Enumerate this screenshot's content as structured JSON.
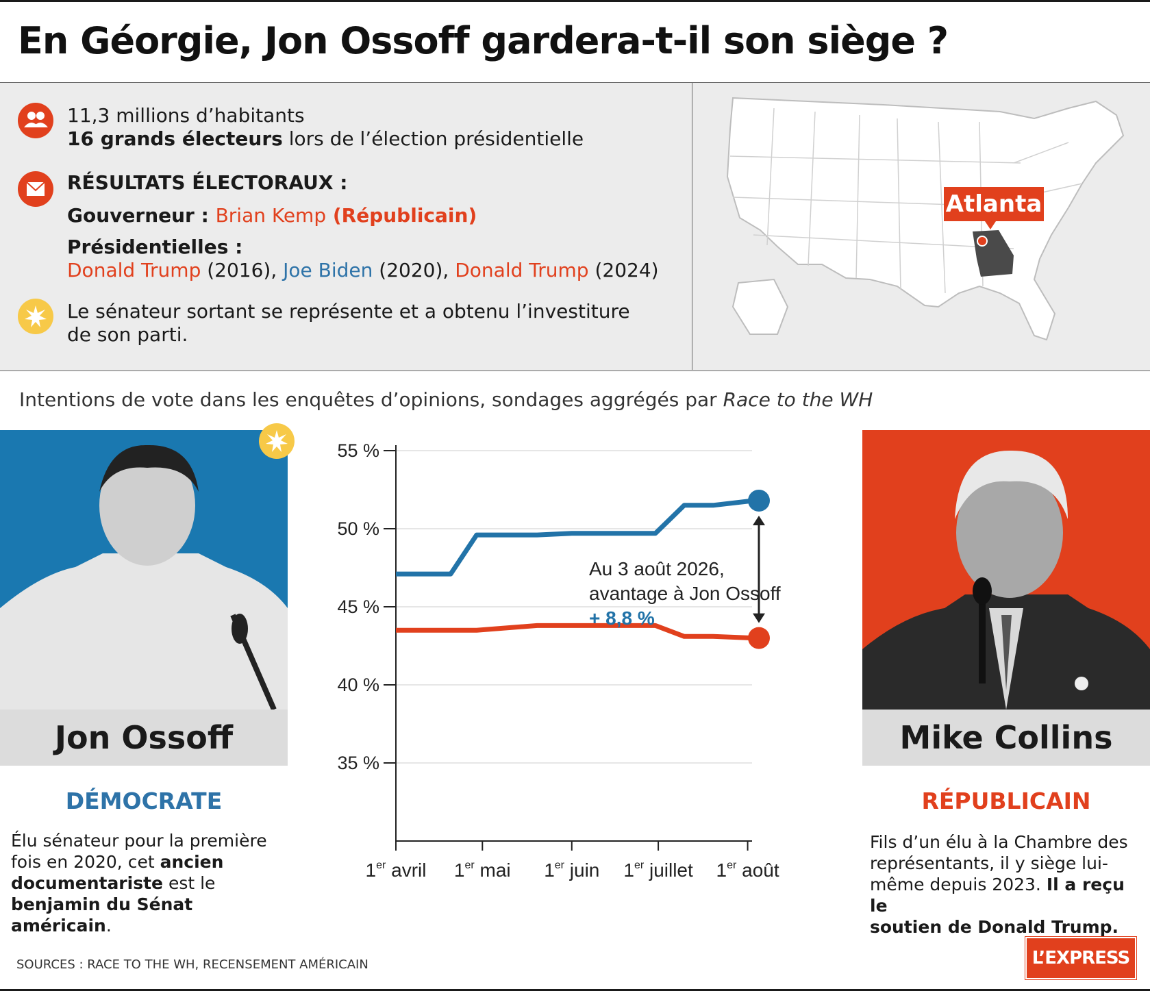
{
  "title": "En Géorgie, Jon Ossoff gardera-t-il son siège ?",
  "info": {
    "population": "11,3 millions d’habitants",
    "electors_bold": "16 grands électeurs",
    "electors_rest": " lors de l’élection présidentielle",
    "results_heading": "RÉSULTATS ÉLECTORAUX :",
    "governor_label": "Gouverneur : ",
    "governor_name": "Brian Kemp",
    "governor_party": " (Républicain)",
    "presidential_label": "Présidentielles :",
    "pres_1_name": "Donald Trump",
    "pres_1_year": " (2016), ",
    "pres_2_name": "Joe Biden",
    "pres_2_year": " (2020), ",
    "pres_3_name": "Donald Trump",
    "pres_3_year": " (2024)",
    "incumbent_line1": "Le sénateur sortant se représente et a obtenu l’investiture",
    "incumbent_line2": "de son parti."
  },
  "map": {
    "city_label": "Atlanta",
    "highlight_state": "Georgia"
  },
  "subtitle_main": "Intentions de vote dans les enquêtes d’opinions, sondages aggrégés par ",
  "subtitle_source": "Race to the WH",
  "candidates": {
    "left": {
      "name": "Jon Ossoff",
      "party": "DÉMOCRATE",
      "desc_1": "Élu sénateur pour la première",
      "desc_2a": "fois en 2020, cet ",
      "desc_2b": "ancien",
      "desc_3a": "documentariste",
      "desc_3b": " est le",
      "desc_4": "benjamin du Sénat américain",
      "desc_4b": "."
    },
    "right": {
      "name": "Mike Collins",
      "party": "RÉPUBLICAIN",
      "desc_1": "Fils d’un élu à la Chambre des",
      "desc_2": "représentants, il y siège lui-",
      "desc_3a": "même depuis 2023. ",
      "desc_3b": "Il a reçu le",
      "desc_4": "soutien de Donald Trump."
    }
  },
  "chart_data": {
    "type": "line",
    "x": [
      "2026-04-01",
      "2026-04-20",
      "2026-04-29",
      "2026-05-20",
      "2026-06-01",
      "2026-06-30",
      "2026-07-10",
      "2026-07-20",
      "2026-08-03"
    ],
    "x_ticks": [
      {
        "pre": "1",
        "sup": "er",
        "post": " avril",
        "date": "2026-04-01"
      },
      {
        "pre": "1",
        "sup": "er",
        "post": " mai",
        "date": "2026-05-01"
      },
      {
        "pre": "1",
        "sup": "er",
        "post": " juin",
        "date": "2026-06-01"
      },
      {
        "pre": "1",
        "sup": "er",
        "post": " juillet",
        "date": "2026-07-01"
      },
      {
        "pre": "1",
        "sup": "er",
        "post": " août",
        "date": "2026-08-01"
      }
    ],
    "y_ticks": [
      "55 %",
      "50 %",
      "45 %",
      "40 %",
      "35 %"
    ],
    "ylim": [
      30,
      55
    ],
    "series": [
      {
        "name": "Jon Ossoff",
        "color": "#2273a8",
        "values": [
          47.1,
          47.1,
          49.6,
          49.6,
          49.7,
          49.7,
          51.5,
          51.5,
          51.8
        ]
      },
      {
        "name": "Mike Collins",
        "color": "#e1401d",
        "values": [
          43.5,
          43.5,
          43.5,
          43.8,
          43.8,
          43.8,
          43.1,
          43.1,
          43.0
        ]
      }
    ],
    "annotation": {
      "line1": "Au 3 août 2026,",
      "line2": "avantage à Jon Ossoff",
      "value": "+ 8,8 %"
    },
    "grid": true
  },
  "sources": "SOURCES : RACE TO THE WH, RECENSEMENT AMÉRICAIN",
  "logo": "L’EXPRESS",
  "colors": {
    "democrat": "#2273a8",
    "republican": "#e1401d",
    "background_panel": "#ececec"
  }
}
